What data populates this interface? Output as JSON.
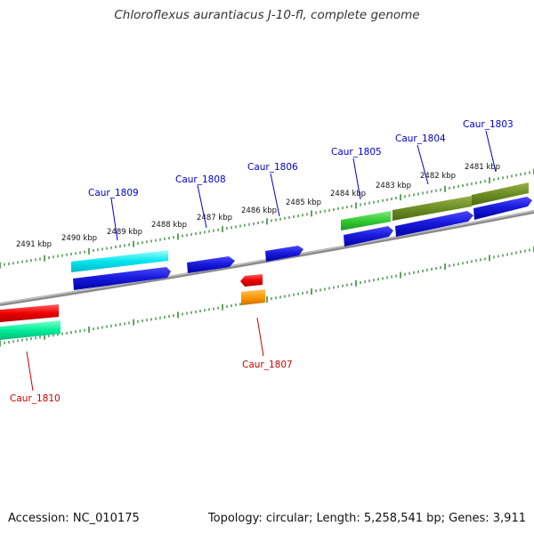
{
  "title": "Chloroflexus aurantiacus J-10-fl, complete genome",
  "footer": {
    "accession": "Accession: NC_010175",
    "summary": "Topology: circular; Length: 5,258,541 bp; Genes: 3,911"
  },
  "colors": {
    "backbone": "#8a8a8a",
    "tick": "#1f7a1f",
    "forward_label": "#0000cc",
    "reverse_label": "#cc0000",
    "cds_blue": "#1a1adc",
    "cyan": "#00e5ee",
    "green": "#33cc33",
    "olive": "#6b8e23",
    "red": "#ee0000",
    "teal": "#00ee99",
    "orange": "#ff9900"
  },
  "scale_labels": [
    "2491 kbp",
    "2490 kbp",
    "2489 kbp",
    "2488 kbp",
    "2487 kbp",
    "2486 kbp",
    "2485 kbp",
    "2484 kbp",
    "2483 kbp",
    "2482 kbp",
    "2481 kbp"
  ],
  "genes": [
    {
      "label": "Caur_1803",
      "strand": "forward"
    },
    {
      "label": "Caur_1804",
      "strand": "forward"
    },
    {
      "label": "Caur_1805",
      "strand": "forward"
    },
    {
      "label": "Caur_1806",
      "strand": "forward"
    },
    {
      "label": "Caur_1807",
      "strand": "reverse"
    },
    {
      "label": "Caur_1808",
      "strand": "forward"
    },
    {
      "label": "Caur_1809",
      "strand": "forward"
    },
    {
      "label": "Caur_1810",
      "strand": "reverse"
    }
  ]
}
